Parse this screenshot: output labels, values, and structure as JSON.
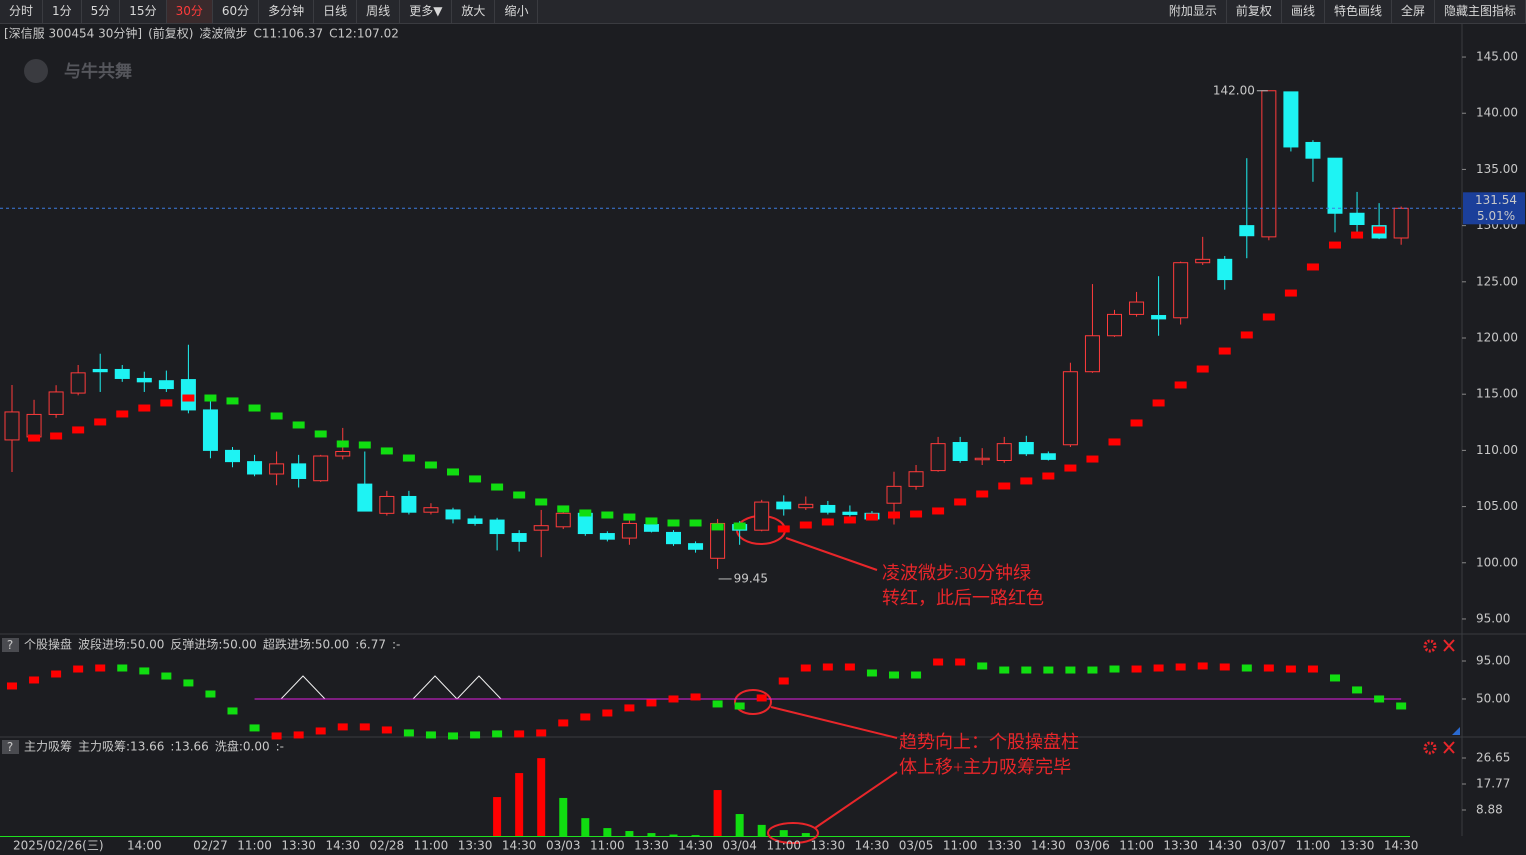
{
  "toolbar": {
    "left": [
      "分时",
      "1分",
      "5分",
      "15分",
      "30分",
      "60分",
      "多分钟",
      "日线",
      "周线",
      "更多▼",
      "放大",
      "缩小"
    ],
    "selected": 4,
    "right": [
      "附加显示",
      "前复权",
      "画线",
      "特色画线",
      "全屏",
      "隐藏主图指标"
    ]
  },
  "watermark": "与牛共舞",
  "help_icon": "?",
  "chart_data": [
    {
      "type": "candlestick",
      "title": "[深信服 300454 30分钟]",
      "subtitle": "(前复权)",
      "indicator": "凌波微步",
      "legend": [
        "C11:106.37",
        "C12:107.02"
      ],
      "legend_colors": [
        "#e0e0e0",
        "#ffd700"
      ],
      "categories": [
        "2025/02/26(三)",
        null,
        null,
        null,
        null,
        null,
        "14:00",
        null,
        null,
        "02/27",
        null,
        "11:00",
        null,
        "13:30",
        null,
        "14:30",
        null,
        "02/28",
        null,
        "11:00",
        null,
        "13:30",
        null,
        "14:30",
        null,
        "03/03",
        null,
        "11:00",
        null,
        "13:30",
        null,
        "14:30",
        null,
        "03/04",
        null,
        "11:00",
        null,
        "13:30",
        null,
        "14:30",
        null,
        "03/05",
        null,
        "11:00",
        null,
        "13:30",
        null,
        "14:30",
        null,
        "03/06",
        null,
        "11:00",
        null,
        "13:30",
        null,
        "14:30",
        null,
        "03/07",
        null,
        "11:00",
        null,
        "13:30",
        null,
        "14:30"
      ],
      "open": [
        110.93,
        111.2,
        113.2,
        115.1,
        117.2,
        117.2,
        116.4,
        116.2,
        116.3,
        113.6,
        110.0,
        109.0,
        107.9,
        108.8,
        107.3,
        109.5,
        107.0,
        104.4,
        105.9,
        104.5,
        104.7,
        103.9,
        103.8,
        102.6,
        102.9,
        103.2,
        104.4,
        102.6,
        102.2,
        103.4,
        102.7,
        101.7,
        100.4,
        103.4,
        102.9,
        105.4,
        104.9,
        105.1,
        104.5,
        104.4,
        105.3,
        106.8,
        108.2,
        110.7,
        109.2,
        109.1,
        110.7,
        109.7,
        110.5,
        117.0,
        120.2,
        122.1,
        122.0,
        121.8,
        126.7,
        127.0,
        130.0,
        129.0,
        141.9,
        137.4,
        136.0,
        131.1,
        130.0,
        128.9
      ],
      "high": [
        115.82,
        114.5,
        115.8,
        117.6,
        118.6,
        117.6,
        117.0,
        117.1,
        119.4,
        114.8,
        110.3,
        109.6,
        109.9,
        109.6,
        109.6,
        112.0,
        109.9,
        106.4,
        106.4,
        105.3,
        104.9,
        104.2,
        104.0,
        102.9,
        104.7,
        104.6,
        104.7,
        102.8,
        103.8,
        103.9,
        102.9,
        101.9,
        103.9,
        103.7,
        105.6,
        106.0,
        105.9,
        105.5,
        105.1,
        104.6,
        108.1,
        108.7,
        111.2,
        111.2,
        110.2,
        111.2,
        111.3,
        109.9,
        117.8,
        124.8,
        122.5,
        124.1,
        125.5,
        126.8,
        129.0,
        127.3,
        136.0,
        142.0,
        141.9,
        137.6,
        136.0,
        133.0,
        132.0,
        131.7
      ],
      "low": [
        108.08,
        110.8,
        112.9,
        114.9,
        115.2,
        116.1,
        115.2,
        115.2,
        113.3,
        109.3,
        108.5,
        107.7,
        106.9,
        106.7,
        107.2,
        109.2,
        104.6,
        104.2,
        104.3,
        104.3,
        103.5,
        103.3,
        101.1,
        101.0,
        100.5,
        103.0,
        102.4,
        101.9,
        101.6,
        102.7,
        101.5,
        100.9,
        99.45,
        101.6,
        102.8,
        104.2,
        104.7,
        104.3,
        103.6,
        103.8,
        103.4,
        106.5,
        108.1,
        108.9,
        108.7,
        108.9,
        109.5,
        109.1,
        110.3,
        116.9,
        120.1,
        121.9,
        120.2,
        121.2,
        126.5,
        124.3,
        127.1,
        128.7,
        136.6,
        133.9,
        129.4,
        129.3,
        128.8,
        128.3
      ],
      "close": [
        113.42,
        113.2,
        115.2,
        116.9,
        117.0,
        116.4,
        116.1,
        115.5,
        113.6,
        110.0,
        109.0,
        107.9,
        108.8,
        107.5,
        109.5,
        109.9,
        104.6,
        105.9,
        104.5,
        104.9,
        103.9,
        103.5,
        102.6,
        101.9,
        103.3,
        104.4,
        102.6,
        102.1,
        103.5,
        102.8,
        101.7,
        101.2,
        103.5,
        102.9,
        105.4,
        104.8,
        105.2,
        104.5,
        104.3,
        103.9,
        106.8,
        108.1,
        110.6,
        109.1,
        109.3,
        110.6,
        109.7,
        109.2,
        117.0,
        120.2,
        122.1,
        123.2,
        121.7,
        126.7,
        127.0,
        125.2,
        129.1,
        142.0,
        137.0,
        136.0,
        131.1,
        130.1,
        128.9,
        131.54
      ],
      "up_color": "#ff3b3b",
      "down_color": "#1ef3f3",
      "overlay": {
        "values": [
          null,
          111.1,
          111.28,
          111.82,
          112.53,
          113.24,
          113.77,
          114.22,
          114.66,
          114.66,
          114.4,
          113.77,
          113.06,
          112.26,
          111.46,
          110.57,
          110.48,
          109.95,
          109.32,
          108.7,
          108.08,
          107.46,
          106.74,
          106.03,
          105.41,
          104.79,
          104.43,
          104.25,
          104.07,
          103.72,
          103.54,
          103.54,
          103.19,
          103.27,
          null,
          103.01,
          103.36,
          103.63,
          103.81,
          104.07,
          104.25,
          104.34,
          104.61,
          105.41,
          106.12,
          106.83,
          107.28,
          107.72,
          108.43,
          109.23,
          110.75,
          112.44,
          114.22,
          115.82,
          117.24,
          118.84,
          120.27,
          121.87,
          124.0,
          126.32,
          128.27,
          129.16,
          129.61,
          null
        ],
        "colors": [
          "#f00",
          "#f00",
          "#f00",
          "#f00",
          "#f00",
          "#f00",
          "#f00",
          "#f00",
          "#f00",
          "#1d1",
          "#1d1",
          "#1d1",
          "#1d1",
          "#1d1",
          "#1d1",
          "#1d1",
          "#1d1",
          "#1d1",
          "#1d1",
          "#1d1",
          "#1d1",
          "#1d1",
          "#1d1",
          "#1d1",
          "#1d1",
          "#1d1",
          "#1d1",
          "#1d1",
          "#1d1",
          "#1d1",
          "#1d1",
          "#1d1",
          "#1d1",
          "#1d1",
          "#f00",
          "#f00",
          "#f00",
          "#f00",
          "#f00",
          "#f00",
          "#f00",
          "#f00",
          "#f00",
          "#f00",
          "#f00",
          "#f00",
          "#f00",
          "#f00",
          "#f00",
          "#f00",
          "#f00",
          "#f00",
          "#f00",
          "#f00",
          "#f00",
          "#f00",
          "#f00",
          "#f00",
          "#f00",
          "#f00",
          "#f00",
          "#f00",
          "#f00",
          "#f00"
        ]
      },
      "ylim": [
        93.84,
        147.94
      ],
      "yticks": [
        {
          "value": 95,
          "label": "95.00"
        },
        {
          "value": 100,
          "label": "100.00"
        },
        {
          "value": 105,
          "label": "105.00"
        },
        {
          "value": 110,
          "label": "110.00"
        },
        {
          "value": 115,
          "label": "115.00"
        },
        {
          "value": 120,
          "label": "120.00"
        },
        {
          "value": 125,
          "label": "125.00"
        },
        {
          "value": 130,
          "label": "130.00"
        },
        {
          "value": 135,
          "label": "135.00"
        },
        {
          "value": 140,
          "label": "140.00"
        },
        {
          "value": 145,
          "label": "145.00"
        }
      ],
      "last_price": 131.54,
      "change_pct": {
        "value": 5.01,
        "label": "5.01%"
      },
      "high_label": "142.00",
      "low_label": "99.45",
      "annotation": [
        "凌波微步:30分钟绿",
        "转红，此后一路红色"
      ]
    },
    {
      "type": "block",
      "name": "个股操盘",
      "legend": [
        "波段进场:50.00",
        "反弹进场:50.00",
        "超跌进场:50.00",
        ":6.77",
        ":-"
      ],
      "legend_colors": [
        "#e0e0e0",
        "#ffd700",
        "#ff3cff",
        "#ff3b3b",
        "#1ee01e"
      ],
      "values": [
        65.4,
        72.5,
        79.6,
        85.5,
        86.7,
        86.7,
        83.2,
        77.2,
        69.0,
        55.9,
        35.8,
        15.7,
        6.2,
        7.4,
        12.1,
        16.9,
        16.9,
        13.3,
        9.8,
        7.4,
        6.2,
        7.4,
        8.6,
        8.6,
        9.8,
        21.6,
        28.7,
        33.4,
        39.4,
        45.3,
        50.0,
        52.4,
        44.1,
        41.7,
        51.2,
        71.3,
        86.7,
        87.9,
        87.9,
        80.8,
        78.4,
        78.4,
        93.8,
        93.8,
        89.1,
        84.3,
        84.3,
        84.3,
        84.3,
        84.3,
        85.5,
        85.5,
        86.7,
        87.9,
        89.1,
        87.9,
        86.7,
        86.7,
        85.5,
        85.5,
        74.9,
        60.7,
        50.0,
        41.7
      ],
      "colors": [
        "#f00",
        "#f00",
        "#f00",
        "#f00",
        "#f00",
        "#1d1",
        "#1d1",
        "#1d1",
        "#1d1",
        "#1d1",
        "#1d1",
        "#1d1",
        "#f00",
        "#f00",
        "#f00",
        "#f00",
        "#f00",
        "#f00",
        "#1d1",
        "#1d1",
        "#1d1",
        "#1d1",
        "#1d1",
        "#f00",
        "#f00",
        "#f00",
        "#f00",
        "#f00",
        "#f00",
        "#f00",
        "#f00",
        "#f00",
        "#1d1",
        "#1d1",
        "#f00",
        "#f00",
        "#f00",
        "#f00",
        "#f00",
        "#1d1",
        "#1d1",
        "#1d1",
        "#f00",
        "#f00",
        "#1d1",
        "#1d1",
        "#1d1",
        "#1d1",
        "#1d1",
        "#1d1",
        "#1d1",
        "#f00",
        "#f00",
        "#f00",
        "#f00",
        "#f00",
        "#1d1",
        "#f00",
        "#f00",
        "#f00",
        "#1d1",
        "#1d1",
        "#1d1",
        "#1d1"
      ],
      "level": 50,
      "level_color": "#e020e0",
      "ylim": [
        4.95,
        125.8
      ],
      "yticks": [
        {
          "value": 50,
          "label": "50.00"
        },
        {
          "value": 95,
          "label": "95.00"
        }
      ],
      "annotation": [
        "趋势向上：个股操盘柱",
        "体上移+主力吸筹完毕"
      ]
    },
    {
      "type": "bar",
      "name": "主力吸筹",
      "legend": [
        "主力吸筹:13.66",
        ":13.66",
        "洗盘:0.00",
        ":-"
      ],
      "legend_colors": [
        "#ff3b3b",
        "#ff3b3b",
        "#ffd700",
        "#1ee01e"
      ],
      "values": [
        0,
        0,
        0,
        0,
        0,
        0,
        0,
        0,
        0,
        0,
        0,
        0,
        0,
        0,
        0,
        0,
        0,
        0,
        0,
        0,
        0,
        0,
        13.3,
        21.5,
        26.6,
        13.0,
        6.1,
        2.7,
        1.7,
        1.0,
        0.5,
        0.3,
        15.7,
        7.5,
        3.8,
        2.0,
        1.0,
        0,
        0,
        0,
        0,
        0,
        0,
        0,
        0,
        0,
        0,
        0,
        0,
        0,
        0,
        0,
        0,
        0,
        0,
        0,
        0,
        0,
        0,
        0,
        0,
        0,
        0,
        0
      ],
      "colors": [
        "#1d1",
        "#1d1",
        "#1d1",
        "#1d1",
        "#1d1",
        "#1d1",
        "#1d1",
        "#1d1",
        "#1d1",
        "#1d1",
        "#1d1",
        "#1d1",
        "#1d1",
        "#1d1",
        "#1d1",
        "#1d1",
        "#1d1",
        "#1d1",
        "#1d1",
        "#1d1",
        "#1d1",
        "#1d1",
        "#f00",
        "#f00",
        "#f00",
        "#1d1",
        "#1d1",
        "#1d1",
        "#1d1",
        "#1d1",
        "#1d1",
        "#1d1",
        "#f00",
        "#1d1",
        "#1d1",
        "#1d1",
        "#1d1",
        "#1d1",
        "#1d1",
        "#1d1",
        "#1d1",
        "#1d1",
        "#1d1",
        "#1d1",
        "#1d1",
        "#1d1",
        "#1d1",
        "#1d1",
        "#1d1",
        "#1d1",
        "#1d1",
        "#1d1",
        "#1d1",
        "#1d1",
        "#1d1",
        "#1d1",
        "#1d1",
        "#1d1",
        "#1d1",
        "#1d1",
        "#1d1",
        "#1d1",
        "#1d1",
        "#1d1"
      ],
      "ylim": [
        0,
        32.8
      ],
      "yticks": [
        {
          "value": 8.88,
          "label": "8.88"
        },
        {
          "value": 17.77,
          "label": "17.77"
        },
        {
          "value": 26.65,
          "label": "26.65"
        }
      ]
    }
  ]
}
